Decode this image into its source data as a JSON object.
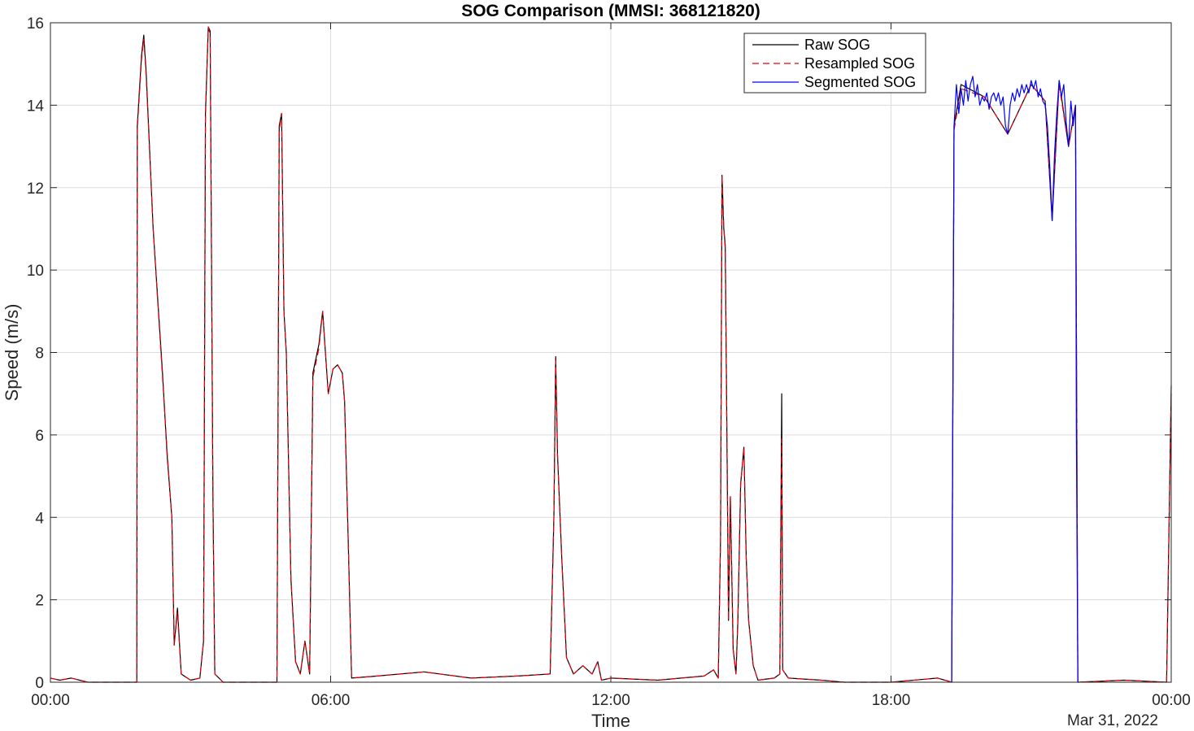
{
  "chart_data": {
    "type": "line",
    "title": "SOG Comparison (MMSI: 368121820)",
    "xlabel": "Time",
    "ylabel": "Speed (m/s)",
    "date_label": "Mar 31, 2022",
    "xlim_hours": [
      0,
      24
    ],
    "ylim": [
      0,
      16
    ],
    "x_ticks": [
      {
        "hour": 0,
        "label": "00:00"
      },
      {
        "hour": 6,
        "label": "06:00"
      },
      {
        "hour": 12,
        "label": "12:00"
      },
      {
        "hour": 18,
        "label": "18:00"
      },
      {
        "hour": 24,
        "label": "00:00"
      }
    ],
    "y_ticks": [
      0,
      2,
      4,
      6,
      8,
      10,
      12,
      14,
      16
    ],
    "grid": true,
    "legend_position": "top-right",
    "series": [
      {
        "name": "Raw SOG",
        "color": "#000000",
        "style": "solid",
        "points": [
          [
            0.0,
            0.1
          ],
          [
            0.2,
            0.05
          ],
          [
            0.45,
            0.1
          ],
          [
            0.8,
            0.0
          ],
          [
            1.85,
            0.0
          ],
          [
            1.86,
            13.5
          ],
          [
            1.95,
            15.2
          ],
          [
            2.0,
            15.7
          ],
          [
            2.05,
            14.8
          ],
          [
            2.2,
            11.0
          ],
          [
            2.4,
            7.5
          ],
          [
            2.5,
            5.5
          ],
          [
            2.6,
            4.0
          ],
          [
            2.65,
            0.9
          ],
          [
            2.72,
            1.8
          ],
          [
            2.8,
            0.2
          ],
          [
            3.0,
            0.05
          ],
          [
            3.2,
            0.1
          ],
          [
            3.28,
            1.0
          ],
          [
            3.32,
            13.8
          ],
          [
            3.38,
            15.9
          ],
          [
            3.42,
            15.8
          ],
          [
            3.48,
            4.5
          ],
          [
            3.52,
            0.2
          ],
          [
            3.7,
            0.0
          ],
          [
            4.85,
            0.0
          ],
          [
            4.9,
            13.5
          ],
          [
            4.95,
            13.8
          ],
          [
            5.0,
            9.0
          ],
          [
            5.05,
            8.0
          ],
          [
            5.15,
            2.5
          ],
          [
            5.25,
            0.5
          ],
          [
            5.35,
            0.2
          ],
          [
            5.45,
            1.0
          ],
          [
            5.55,
            0.2
          ],
          [
            5.62,
            7.5
          ],
          [
            5.75,
            8.2
          ],
          [
            5.83,
            9.0
          ],
          [
            5.9,
            7.8
          ],
          [
            5.95,
            7.0
          ],
          [
            6.05,
            7.6
          ],
          [
            6.15,
            7.7
          ],
          [
            6.25,
            7.5
          ],
          [
            6.3,
            6.8
          ],
          [
            6.38,
            3.3
          ],
          [
            6.45,
            0.1
          ],
          [
            7.0,
            0.15
          ],
          [
            8.0,
            0.25
          ],
          [
            9.0,
            0.1
          ],
          [
            10.0,
            0.15
          ],
          [
            10.7,
            0.2
          ],
          [
            10.78,
            4.0
          ],
          [
            10.82,
            7.9
          ],
          [
            10.86,
            5.5
          ],
          [
            10.95,
            3.0
          ],
          [
            11.05,
            0.6
          ],
          [
            11.2,
            0.2
          ],
          [
            11.4,
            0.4
          ],
          [
            11.6,
            0.2
          ],
          [
            11.72,
            0.5
          ],
          [
            11.8,
            0.05
          ],
          [
            12.0,
            0.1
          ],
          [
            13.0,
            0.05
          ],
          [
            14.0,
            0.15
          ],
          [
            14.2,
            0.3
          ],
          [
            14.3,
            0.1
          ],
          [
            14.35,
            3.5
          ],
          [
            14.38,
            12.3
          ],
          [
            14.42,
            11.0
          ],
          [
            14.45,
            10.6
          ],
          [
            14.52,
            1.5
          ],
          [
            14.56,
            4.5
          ],
          [
            14.62,
            0.8
          ],
          [
            14.68,
            0.2
          ],
          [
            14.72,
            1.5
          ],
          [
            14.78,
            4.8
          ],
          [
            14.85,
            5.7
          ],
          [
            14.9,
            3.0
          ],
          [
            14.95,
            1.5
          ],
          [
            15.05,
            0.4
          ],
          [
            15.15,
            0.05
          ],
          [
            15.5,
            0.1
          ],
          [
            15.62,
            0.2
          ],
          [
            15.66,
            7.0
          ],
          [
            15.68,
            0.3
          ],
          [
            15.8,
            0.1
          ],
          [
            16.5,
            0.05
          ],
          [
            17.0,
            0.0
          ],
          [
            18.0,
            0.0
          ],
          [
            19.0,
            0.1
          ],
          [
            19.3,
            0.0
          ],
          [
            19.35,
            13.5
          ],
          [
            19.5,
            14.5
          ],
          [
            20.0,
            14.2
          ],
          [
            20.5,
            13.3
          ],
          [
            21.0,
            14.5
          ],
          [
            21.3,
            14.1
          ],
          [
            21.45,
            11.2
          ],
          [
            21.6,
            14.6
          ],
          [
            21.8,
            13.0
          ],
          [
            21.95,
            14.0
          ],
          [
            22.0,
            0.0
          ],
          [
            23.0,
            0.05
          ],
          [
            23.9,
            0.0
          ],
          [
            24.0,
            7.2
          ]
        ]
      },
      {
        "name": "Resampled SOG",
        "color": "#e8000b",
        "style": "dashed",
        "points": [
          [
            0.0,
            0.1
          ],
          [
            0.2,
            0.05
          ],
          [
            0.45,
            0.1
          ],
          [
            0.8,
            0.0
          ],
          [
            1.85,
            0.0
          ],
          [
            1.86,
            13.4
          ],
          [
            1.95,
            15.1
          ],
          [
            2.0,
            15.6
          ],
          [
            2.05,
            14.7
          ],
          [
            2.2,
            11.0
          ],
          [
            2.4,
            7.4
          ],
          [
            2.5,
            5.6
          ],
          [
            2.6,
            4.0
          ],
          [
            2.65,
            0.9
          ],
          [
            2.72,
            1.7
          ],
          [
            2.8,
            0.2
          ],
          [
            3.0,
            0.05
          ],
          [
            3.2,
            0.1
          ],
          [
            3.28,
            1.0
          ],
          [
            3.32,
            13.7
          ],
          [
            3.38,
            15.9
          ],
          [
            3.42,
            15.7
          ],
          [
            3.48,
            4.4
          ],
          [
            3.52,
            0.2
          ],
          [
            3.7,
            0.0
          ],
          [
            4.85,
            0.0
          ],
          [
            4.9,
            13.4
          ],
          [
            4.95,
            13.8
          ],
          [
            5.0,
            9.0
          ],
          [
            5.05,
            8.0
          ],
          [
            5.15,
            2.5
          ],
          [
            5.25,
            0.5
          ],
          [
            5.35,
            0.2
          ],
          [
            5.45,
            1.0
          ],
          [
            5.55,
            0.2
          ],
          [
            5.62,
            7.4
          ],
          [
            5.75,
            8.1
          ],
          [
            5.83,
            9.0
          ],
          [
            5.9,
            7.8
          ],
          [
            5.95,
            7.0
          ],
          [
            6.05,
            7.6
          ],
          [
            6.15,
            7.7
          ],
          [
            6.25,
            7.5
          ],
          [
            6.3,
            6.8
          ],
          [
            6.38,
            3.3
          ],
          [
            6.45,
            0.1
          ],
          [
            7.0,
            0.15
          ],
          [
            8.0,
            0.25
          ],
          [
            9.0,
            0.1
          ],
          [
            10.0,
            0.15
          ],
          [
            10.7,
            0.2
          ],
          [
            10.78,
            4.0
          ],
          [
            10.82,
            7.8
          ],
          [
            10.86,
            5.5
          ],
          [
            10.95,
            3.0
          ],
          [
            11.05,
            0.6
          ],
          [
            11.2,
            0.2
          ],
          [
            11.4,
            0.4
          ],
          [
            11.6,
            0.2
          ],
          [
            11.72,
            0.5
          ],
          [
            11.8,
            0.05
          ],
          [
            12.0,
            0.1
          ],
          [
            13.0,
            0.05
          ],
          [
            14.0,
            0.15
          ],
          [
            14.2,
            0.3
          ],
          [
            14.3,
            0.1
          ],
          [
            14.35,
            3.5
          ],
          [
            14.38,
            12.3
          ],
          [
            14.42,
            11.0
          ],
          [
            14.45,
            10.5
          ],
          [
            14.52,
            1.5
          ],
          [
            14.56,
            4.5
          ],
          [
            14.62,
            0.8
          ],
          [
            14.68,
            0.2
          ],
          [
            14.72,
            1.5
          ],
          [
            14.78,
            4.8
          ],
          [
            14.85,
            5.7
          ],
          [
            14.9,
            3.0
          ],
          [
            14.95,
            1.5
          ],
          [
            15.05,
            0.4
          ],
          [
            15.15,
            0.05
          ],
          [
            15.5,
            0.1
          ],
          [
            15.62,
            0.2
          ],
          [
            15.66,
            5.9
          ],
          [
            15.68,
            0.3
          ],
          [
            15.8,
            0.1
          ],
          [
            16.5,
            0.05
          ],
          [
            17.0,
            0.0
          ],
          [
            18.0,
            0.0
          ],
          [
            19.0,
            0.1
          ],
          [
            19.3,
            0.0
          ],
          [
            19.35,
            13.4
          ],
          [
            19.5,
            14.4
          ],
          [
            20.0,
            14.2
          ],
          [
            20.5,
            13.3
          ],
          [
            21.0,
            14.5
          ],
          [
            21.3,
            14.1
          ],
          [
            21.45,
            11.3
          ],
          [
            21.6,
            14.5
          ],
          [
            21.8,
            13.0
          ],
          [
            21.95,
            14.0
          ],
          [
            22.0,
            0.0
          ],
          [
            23.0,
            0.05
          ],
          [
            23.9,
            0.0
          ],
          [
            24.0,
            7.0
          ]
        ]
      },
      {
        "name": "Segmented SOG",
        "color": "#0000ff",
        "style": "solid",
        "points": [
          [
            19.3,
            0.0
          ],
          [
            19.32,
            6.0
          ],
          [
            19.35,
            13.5
          ],
          [
            19.4,
            14.5
          ],
          [
            19.45,
            13.8
          ],
          [
            19.5,
            14.4
          ],
          [
            19.55,
            14.0
          ],
          [
            19.6,
            14.6
          ],
          [
            19.65,
            14.1
          ],
          [
            19.7,
            14.5
          ],
          [
            19.75,
            14.7
          ],
          [
            19.8,
            14.2
          ],
          [
            19.85,
            14.5
          ],
          [
            19.9,
            14.0
          ],
          [
            19.95,
            14.2
          ],
          [
            20.0,
            14.1
          ],
          [
            20.05,
            14.3
          ],
          [
            20.1,
            13.9
          ],
          [
            20.15,
            14.2
          ],
          [
            20.2,
            14.3
          ],
          [
            20.25,
            14.1
          ],
          [
            20.3,
            14.3
          ],
          [
            20.35,
            14.0
          ],
          [
            20.4,
            14.2
          ],
          [
            20.45,
            13.5
          ],
          [
            20.5,
            13.3
          ],
          [
            20.55,
            14.0
          ],
          [
            20.6,
            14.3
          ],
          [
            20.65,
            14.1
          ],
          [
            20.7,
            14.4
          ],
          [
            20.75,
            14.2
          ],
          [
            20.8,
            14.5
          ],
          [
            20.85,
            14.3
          ],
          [
            20.9,
            14.5
          ],
          [
            20.95,
            14.3
          ],
          [
            21.0,
            14.6
          ],
          [
            21.05,
            14.4
          ],
          [
            21.1,
            14.6
          ],
          [
            21.15,
            14.2
          ],
          [
            21.2,
            14.4
          ],
          [
            21.25,
            14.1
          ],
          [
            21.3,
            14.0
          ],
          [
            21.35,
            13.5
          ],
          [
            21.4,
            12.5
          ],
          [
            21.45,
            11.2
          ],
          [
            21.5,
            12.8
          ],
          [
            21.55,
            13.8
          ],
          [
            21.6,
            14.6
          ],
          [
            21.65,
            14.2
          ],
          [
            21.7,
            14.5
          ],
          [
            21.75,
            13.6
          ],
          [
            21.8,
            13.0
          ],
          [
            21.85,
            14.1
          ],
          [
            21.9,
            13.5
          ],
          [
            21.95,
            14.0
          ],
          [
            21.97,
            6.0
          ],
          [
            22.0,
            0.0
          ]
        ]
      }
    ]
  }
}
